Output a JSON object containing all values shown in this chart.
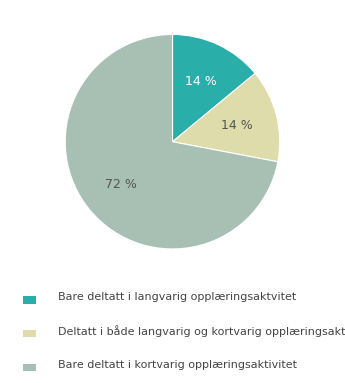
{
  "values": [
    14,
    14,
    72
  ],
  "labels": [
    "14 %",
    "14 %",
    "72 %"
  ],
  "colors": [
    "#2aaeaa",
    "#dddcaa",
    "#a8c0b4"
  ],
  "legend_labels": [
    "Bare deltatt i langvarig opplæringsaktvitet",
    "Deltatt i både langvarig og kortvarig opplæringsaktivitet",
    "Bare deltatt i kortvarig opplæringsaktivitet"
  ],
  "legend_colors": [
    "#2aaeaa",
    "#dddcaa",
    "#a8c0b4"
  ],
  "label_colors": [
    "white",
    "#555555",
    "#555555"
  ],
  "startangle": 90,
  "background_color": "#ffffff",
  "font_size": 9,
  "legend_fontsize": 8
}
